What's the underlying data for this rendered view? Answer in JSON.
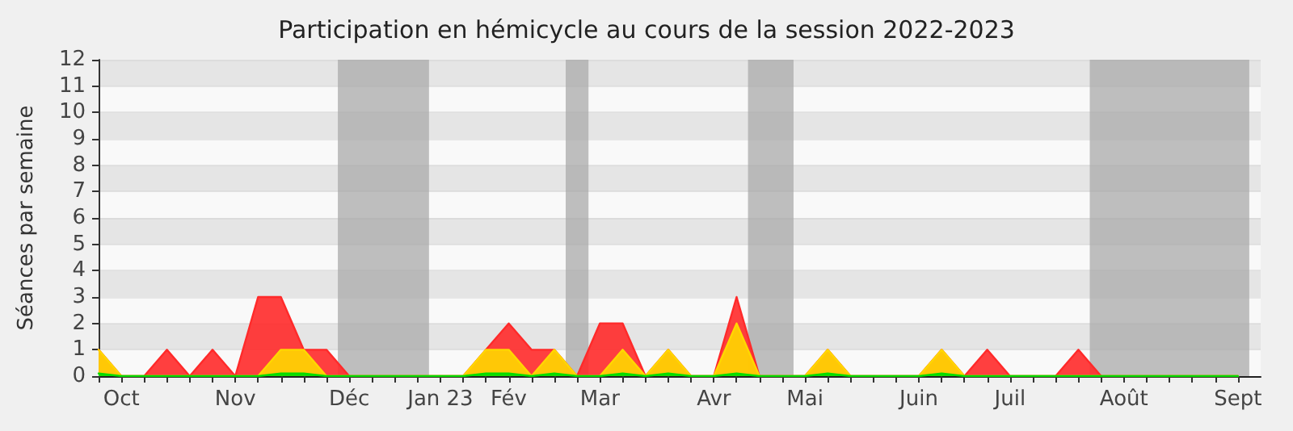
{
  "chart_data": {
    "type": "area",
    "title": "Participation en hémicycle au cours de la session 2022-2023",
    "ylabel": "Séances par semaine",
    "x": [
      "2022-10-03",
      "2022-10-10",
      "2022-10-17",
      "2022-10-24",
      "2022-10-31",
      "2022-11-07",
      "2022-11-14",
      "2022-11-21",
      "2022-11-28",
      "2022-12-05",
      "2022-12-12",
      "2022-12-19",
      "2022-12-26",
      "2023-01-02",
      "2023-01-09",
      "2023-01-16",
      "2023-01-23",
      "2023-01-30",
      "2023-02-06",
      "2023-02-13",
      "2023-02-20",
      "2023-02-27",
      "2023-03-06",
      "2023-03-13",
      "2023-03-20",
      "2023-03-27",
      "2023-04-03",
      "2023-04-10",
      "2023-04-17",
      "2023-04-24",
      "2023-05-01",
      "2023-05-08",
      "2023-05-15",
      "2023-05-22",
      "2023-05-29",
      "2023-06-05",
      "2023-06-12",
      "2023-06-19",
      "2023-06-26",
      "2023-07-03",
      "2023-07-10",
      "2023-07-17",
      "2023-07-24",
      "2023-07-31",
      "2023-08-07",
      "2023-08-14",
      "2023-08-21",
      "2023-08-28",
      "2023-09-04",
      "2023-09-11",
      "2023-09-18"
    ],
    "series": [
      {
        "color": "#ff2a2a",
        "values": [
          1,
          0,
          0,
          1,
          0,
          1,
          0,
          3,
          3,
          1,
          1,
          0,
          0,
          0,
          0,
          0,
          0,
          1,
          2,
          1,
          1,
          0,
          2,
          2,
          0,
          1,
          0,
          0,
          3,
          0,
          0,
          0,
          1,
          0,
          0,
          0,
          0,
          1,
          0,
          1,
          0,
          0,
          0,
          1,
          0,
          0,
          0,
          0,
          0,
          0,
          0
        ]
      },
      {
        "color": "#ffd700",
        "values": [
          1,
          0,
          0,
          0,
          0,
          0,
          0,
          0,
          1,
          1,
          0,
          0,
          0,
          0,
          0,
          0,
          0,
          1,
          1,
          0,
          1,
          0,
          0,
          1,
          0,
          1,
          0,
          0,
          2,
          0,
          0,
          0,
          1,
          0,
          0,
          0,
          0,
          1,
          0,
          0,
          0,
          0,
          0,
          0,
          0,
          0,
          0,
          0,
          0,
          0,
          0
        ]
      },
      {
        "color": "#00dd00",
        "values": [
          0.1,
          0,
          0,
          0,
          0,
          0,
          0,
          0,
          0.1,
          0.1,
          0,
          0,
          0,
          0,
          0,
          0,
          0,
          0.1,
          0.1,
          0,
          0.1,
          0,
          0,
          0.1,
          0,
          0.1,
          0,
          0,
          0.1,
          0,
          0,
          0,
          0.1,
          0,
          0,
          0,
          0,
          0.1,
          0,
          0,
          0,
          0,
          0,
          0,
          0,
          0,
          0,
          0,
          0,
          0,
          0
        ]
      }
    ],
    "xlim": [
      "2022-10-03",
      "2023-09-25"
    ],
    "xticks": [
      {
        "value": "2022-10-03",
        "label": null
      },
      {
        "value": "2022-10-10",
        "label": "Oct"
      },
      {
        "value": "2022-10-17",
        "label": null
      },
      {
        "value": "2022-10-24",
        "label": null
      },
      {
        "value": "2022-10-31",
        "label": null
      },
      {
        "value": "2022-11-07",
        "label": null
      },
      {
        "value": "2022-11-14",
        "label": "Nov"
      },
      {
        "value": "2022-11-21",
        "label": null
      },
      {
        "value": "2022-11-28",
        "label": null
      },
      {
        "value": "2022-12-05",
        "label": null
      },
      {
        "value": "2022-12-12",
        "label": null
      },
      {
        "value": "2022-12-19",
        "label": "Déc"
      },
      {
        "value": "2022-12-26",
        "label": null
      },
      {
        "value": "2023-01-02",
        "label": null
      },
      {
        "value": "2023-01-09",
        "label": null
      },
      {
        "value": "2023-01-16",
        "label": "Jan 23"
      },
      {
        "value": "2023-01-23",
        "label": null
      },
      {
        "value": "2023-01-30",
        "label": null
      },
      {
        "value": "2023-02-06",
        "label": "Fév"
      },
      {
        "value": "2023-02-13",
        "label": null
      },
      {
        "value": "2023-02-20",
        "label": null
      },
      {
        "value": "2023-02-27",
        "label": null
      },
      {
        "value": "2023-03-06",
        "label": "Mar"
      },
      {
        "value": "2023-03-13",
        "label": null
      },
      {
        "value": "2023-03-20",
        "label": null
      },
      {
        "value": "2023-03-27",
        "label": null
      },
      {
        "value": "2023-04-03",
        "label": null
      },
      {
        "value": "2023-04-10",
        "label": "Avr"
      },
      {
        "value": "2023-04-17",
        "label": null
      },
      {
        "value": "2023-04-24",
        "label": null
      },
      {
        "value": "2023-05-01",
        "label": null
      },
      {
        "value": "2023-05-08",
        "label": "Mai"
      },
      {
        "value": "2023-05-15",
        "label": null
      },
      {
        "value": "2023-05-22",
        "label": null
      },
      {
        "value": "2023-05-29",
        "label": null
      },
      {
        "value": "2023-06-05",
        "label": null
      },
      {
        "value": "2023-06-12",
        "label": "Juin"
      },
      {
        "value": "2023-06-19",
        "label": null
      },
      {
        "value": "2023-06-26",
        "label": null
      },
      {
        "value": "2023-07-03",
        "label": null
      },
      {
        "value": "2023-07-10",
        "label": "Juil"
      },
      {
        "value": "2023-07-17",
        "label": null
      },
      {
        "value": "2023-07-24",
        "label": null
      },
      {
        "value": "2023-07-31",
        "label": null
      },
      {
        "value": "2023-08-07",
        "label": null
      },
      {
        "value": "2023-08-14",
        "label": "Août"
      },
      {
        "value": "2023-08-21",
        "label": null
      },
      {
        "value": "2023-08-28",
        "label": null
      },
      {
        "value": "2023-09-04",
        "label": null
      },
      {
        "value": "2023-09-11",
        "label": null
      },
      {
        "value": "2023-09-18",
        "label": "Sept"
      }
    ],
    "ylim": [
      0,
      12
    ],
    "yticks": [
      0,
      1,
      2,
      3,
      4,
      5,
      6,
      7,
      8,
      9,
      10,
      11,
      12
    ],
    "grid": "y",
    "bands": [
      {
        "axis": "x",
        "from": "2022-12-15T12:00",
        "to": "2023-01-12T12:00",
        "color": "#aaaaaa"
      },
      {
        "axis": "x",
        "from": "2023-02-23T12:00",
        "to": "2023-03-02T12:00",
        "color": "#aaaaaa"
      },
      {
        "axis": "x",
        "from": "2023-04-20T12:00",
        "to": "2023-05-04T12:00",
        "color": "#aaaaaa"
      },
      {
        "axis": "x",
        "from": "2023-08-03T12:00",
        "to": "2023-09-21T12:00",
        "color": "#aaaaaa"
      }
    ]
  }
}
